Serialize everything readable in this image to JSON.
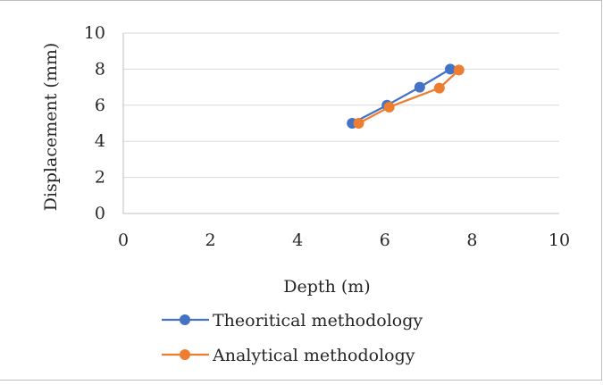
{
  "chart_data": {
    "type": "scatter",
    "xlabel": "Depth (m)",
    "ylabel": "Displacement (mm)",
    "xlim": [
      0,
      10
    ],
    "ylim": [
      0,
      10
    ],
    "xticks": [
      "0",
      "2",
      "4",
      "6",
      "8",
      "10"
    ],
    "yticks": [
      "0",
      "2",
      "4",
      "6",
      "8",
      "10"
    ],
    "grid": "horizontal",
    "legend_position": "bottom",
    "series": [
      {
        "name": "Theoritical methodology",
        "color": "#4472C4",
        "x": [
          5.25,
          6.05,
          6.8,
          7.5
        ],
        "y": [
          5,
          6,
          7,
          8
        ]
      },
      {
        "name": "Analytical methodology",
        "color": "#ED7D31",
        "x": [
          5.4,
          6.1,
          7.25,
          7.7
        ],
        "y": [
          5,
          5.9,
          6.95,
          7.95
        ]
      }
    ]
  }
}
